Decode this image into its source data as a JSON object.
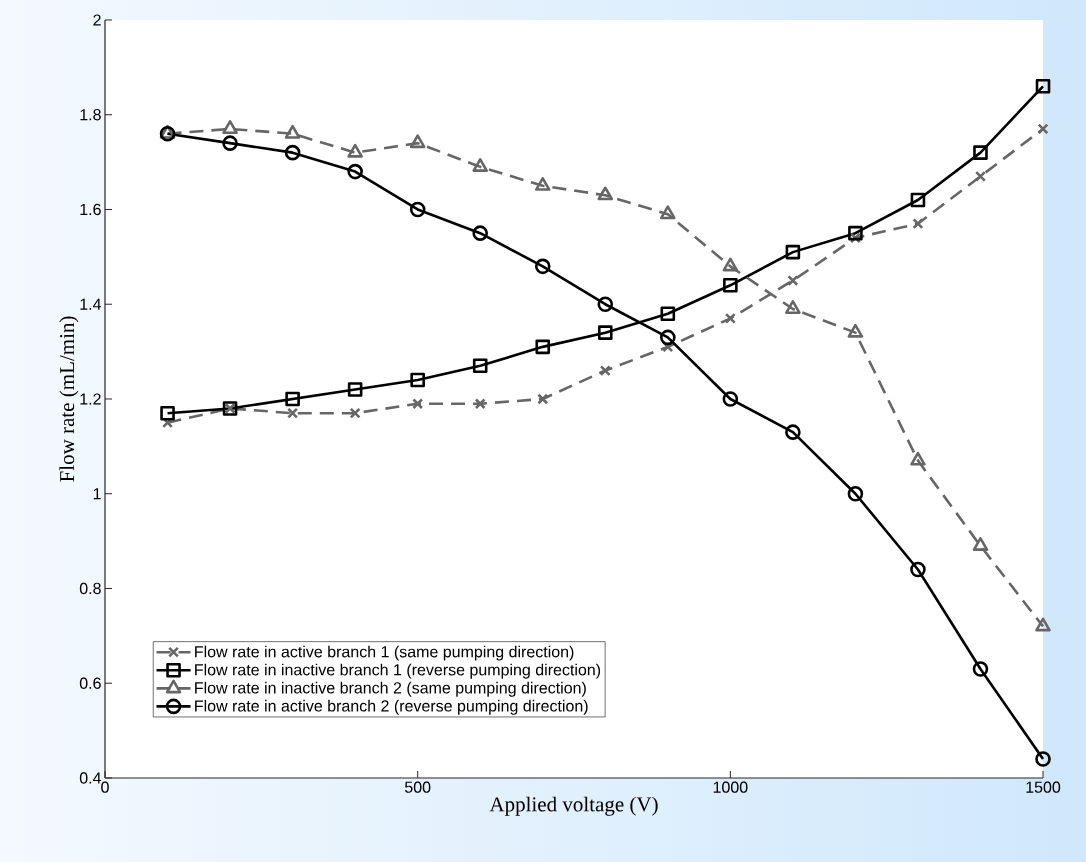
{
  "chart_data": {
    "type": "line",
    "xlabel": "Applied voltage (V)",
    "ylabel": "Flow rate (mL/min)",
    "x": [
      100,
      200,
      300,
      400,
      500,
      600,
      700,
      800,
      900,
      1000,
      1100,
      1200,
      1300,
      1400,
      1500
    ],
    "series": [
      {
        "name": "Flow rate in active branch 1 (same pumping direction)",
        "color": "#666666",
        "marker": "cross",
        "line_style": "dashed",
        "values": [
          1.15,
          1.18,
          1.17,
          1.17,
          1.19,
          1.19,
          1.2,
          1.26,
          1.31,
          1.37,
          1.45,
          1.54,
          1.57,
          1.67,
          1.77
        ]
      },
      {
        "name": "Flow rate in inactive branch 1 (reverse pumping direction)",
        "color": "#000000",
        "marker": "square",
        "line_style": "solid",
        "values": [
          1.17,
          1.18,
          1.2,
          1.22,
          1.24,
          1.27,
          1.31,
          1.34,
          1.38,
          1.44,
          1.51,
          1.55,
          1.62,
          1.72,
          1.86
        ]
      },
      {
        "name": "Flow rate in inactive branch 2 (same pumping direction)",
        "color": "#666666",
        "marker": "triangle",
        "line_style": "dashed",
        "values": [
          1.76,
          1.77,
          1.76,
          1.72,
          1.74,
          1.69,
          1.65,
          1.63,
          1.59,
          1.48,
          1.39,
          1.34,
          1.07,
          0.89,
          0.72
        ]
      },
      {
        "name": "Flow rate in active branch 2 (reverse pumping direction)",
        "color": "#000000",
        "marker": "circle",
        "line_style": "solid",
        "values": [
          1.76,
          1.74,
          1.72,
          1.68,
          1.6,
          1.55,
          1.48,
          1.4,
          1.33,
          1.2,
          1.13,
          1.0,
          0.84,
          0.63,
          0.44
        ]
      }
    ],
    "xlim": [
      0,
      1500
    ],
    "ylim": [
      0.4,
      2
    ],
    "xticks": [
      0,
      500,
      1000,
      1500
    ],
    "yticks": [
      0.4,
      0.6,
      0.8,
      1,
      1.2,
      1.4,
      1.6,
      1.8,
      2
    ],
    "grid": false,
    "legend": "bottom left"
  }
}
